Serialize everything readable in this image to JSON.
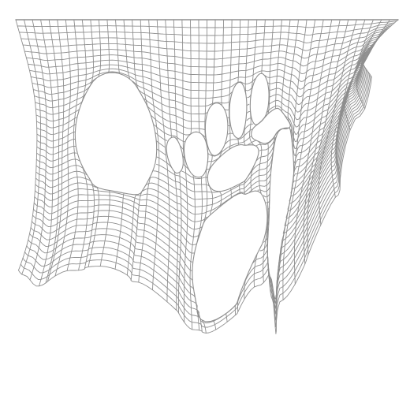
{
  "figure": {
    "kind": "wireframe-cloth-mesh",
    "background_color": "#ffffff",
    "line_color": "#8f8f8f",
    "mesh": {
      "rows": 40,
      "columns": 46,
      "tears": [
        {
          "name": "left-large-hole"
        },
        {
          "name": "lower-center-hole"
        },
        {
          "name": "upper-middle-holes"
        }
      ]
    }
  }
}
